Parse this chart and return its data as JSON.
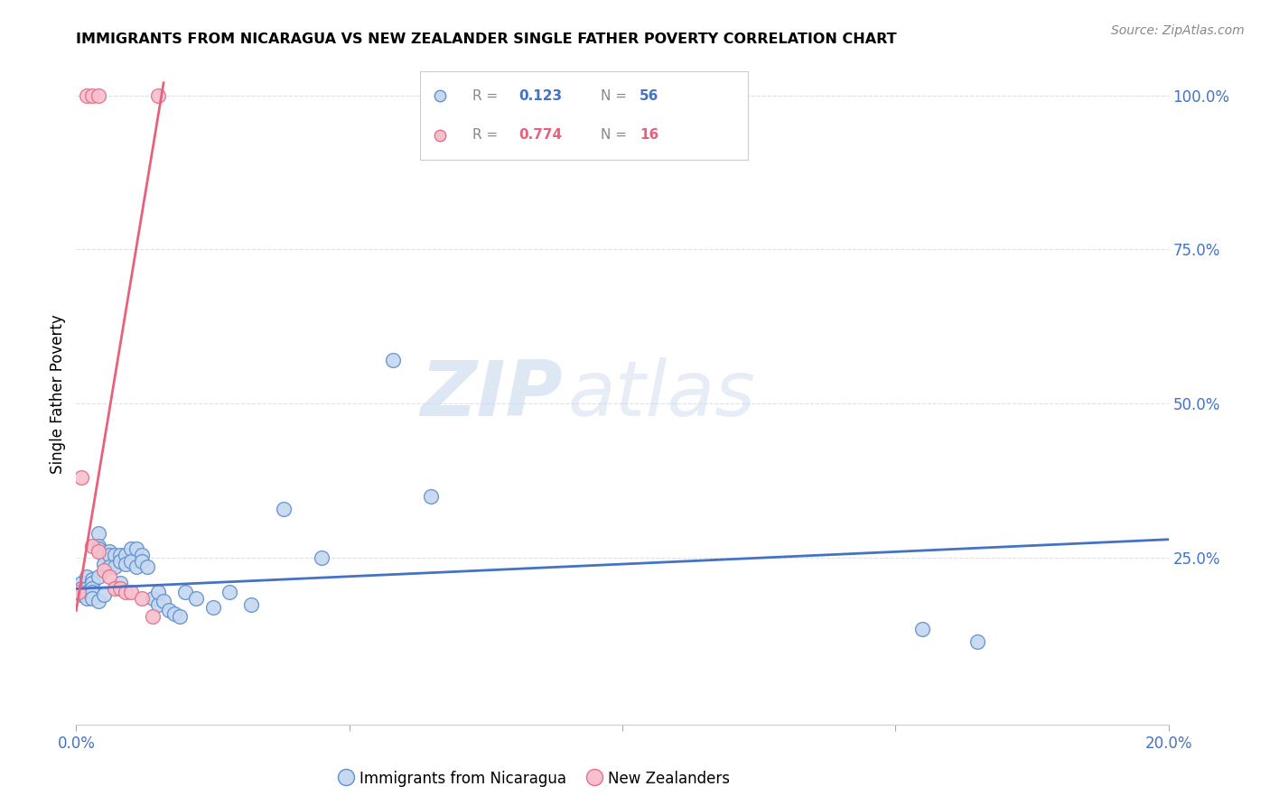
{
  "title": "IMMIGRANTS FROM NICARAGUA VS NEW ZEALANDER SINGLE FATHER POVERTY CORRELATION CHART",
  "source": "Source: ZipAtlas.com",
  "ylabel": "Single Father Poverty",
  "xlim": [
    0.0,
    0.2
  ],
  "ylim": [
    -0.02,
    1.05
  ],
  "plot_ylim": [
    0.0,
    1.0
  ],
  "right_yticks": [
    0.25,
    0.5,
    0.75,
    1.0
  ],
  "right_ytick_labels": [
    "25.0%",
    "50.0%",
    "75.0%",
    "100.0%"
  ],
  "x_ticks": [
    0.0,
    0.05,
    0.1,
    0.15,
    0.2
  ],
  "x_tick_labels": [
    "0.0%",
    "",
    "",
    "",
    "20.0%"
  ],
  "blue_R": 0.123,
  "blue_N": 56,
  "pink_R": 0.774,
  "pink_N": 16,
  "blue_fill": "#c5d8f0",
  "pink_fill": "#f8c0cc",
  "blue_edge": "#6090d0",
  "pink_edge": "#e07090",
  "blue_line_color": "#4472c4",
  "pink_line_color": "#e8607a",
  "label_color": "#4472c4",
  "legend_blue_label": "Immigrants from Nicaragua",
  "legend_pink_label": "New Zealanders",
  "blue_scatter_x": [
    0.0005,
    0.001,
    0.001,
    0.001,
    0.002,
    0.002,
    0.002,
    0.002,
    0.003,
    0.003,
    0.003,
    0.003,
    0.003,
    0.004,
    0.004,
    0.004,
    0.004,
    0.004,
    0.005,
    0.005,
    0.005,
    0.006,
    0.006,
    0.006,
    0.007,
    0.007,
    0.008,
    0.008,
    0.008,
    0.009,
    0.009,
    0.01,
    0.01,
    0.011,
    0.011,
    0.012,
    0.012,
    0.013,
    0.014,
    0.015,
    0.015,
    0.016,
    0.017,
    0.018,
    0.019,
    0.02,
    0.022,
    0.025,
    0.028,
    0.032,
    0.038,
    0.045,
    0.058,
    0.065,
    0.155,
    0.165
  ],
  "blue_scatter_y": [
    0.195,
    0.21,
    0.2,
    0.19,
    0.22,
    0.2,
    0.195,
    0.185,
    0.215,
    0.21,
    0.2,
    0.195,
    0.185,
    0.29,
    0.27,
    0.265,
    0.22,
    0.18,
    0.255,
    0.24,
    0.19,
    0.26,
    0.255,
    0.235,
    0.255,
    0.235,
    0.255,
    0.245,
    0.21,
    0.255,
    0.24,
    0.265,
    0.245,
    0.265,
    0.235,
    0.255,
    0.245,
    0.235,
    0.185,
    0.175,
    0.195,
    0.18,
    0.165,
    0.16,
    0.155,
    0.195,
    0.185,
    0.17,
    0.195,
    0.175,
    0.33,
    0.25,
    0.57,
    0.35,
    0.135,
    0.115
  ],
  "pink_scatter_x": [
    0.0005,
    0.001,
    0.002,
    0.003,
    0.003,
    0.004,
    0.004,
    0.005,
    0.006,
    0.007,
    0.008,
    0.009,
    0.01,
    0.012,
    0.014,
    0.015
  ],
  "pink_scatter_y": [
    0.195,
    0.38,
    1.0,
    1.0,
    0.27,
    1.0,
    0.26,
    0.23,
    0.22,
    0.2,
    0.2,
    0.195,
    0.195,
    0.185,
    0.155,
    1.0
  ],
  "blue_trend_x": [
    0.0,
    0.2
  ],
  "blue_trend_y": [
    0.2,
    0.28
  ],
  "pink_trend_x": [
    0.0,
    0.016
  ],
  "pink_trend_y": [
    0.165,
    1.02
  ],
  "watermark_zip": "ZIP",
  "watermark_atlas": "atlas",
  "background_color": "#ffffff",
  "grid_color": "#e0e0e0"
}
